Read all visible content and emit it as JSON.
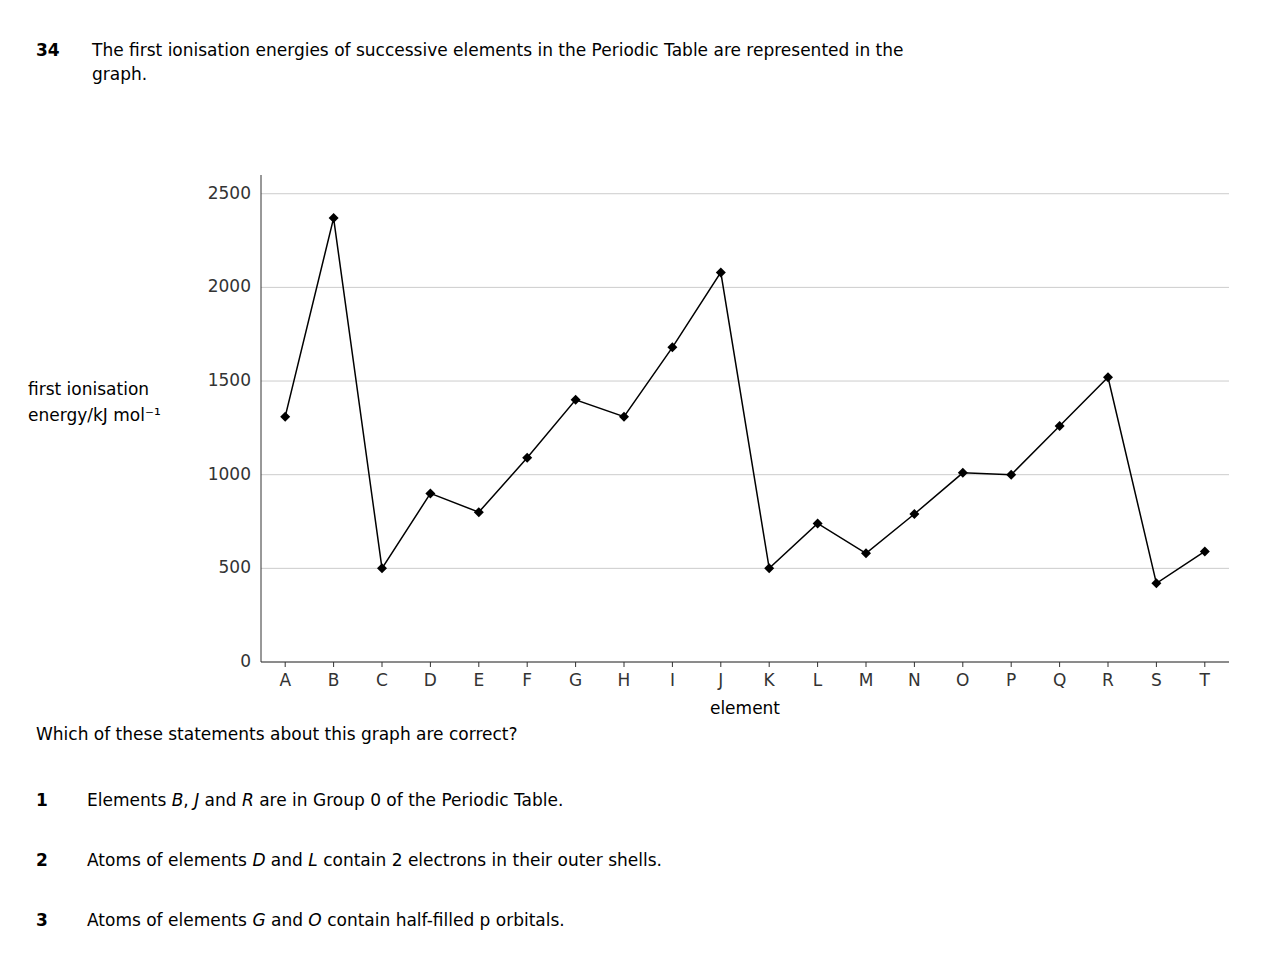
{
  "chart_data": {
    "type": "line",
    "title": "The first ionisation energies of successive elements in the Periodic Table are represented in the\ngraph.",
    "xlabel": "element",
    "ylabel": "first ionisation\nenergy/kJ mol⁻¹",
    "categories": [
      "A",
      "B",
      "C",
      "D",
      "E",
      "F",
      "G",
      "H",
      "I",
      "J",
      "K",
      "L",
      "M",
      "N",
      "O",
      "P",
      "Q",
      "R",
      "S",
      "T"
    ],
    "values": [
      1310,
      2370,
      500,
      900,
      800,
      1090,
      1400,
      1310,
      1680,
      2080,
      500,
      740,
      580,
      790,
      1010,
      1000,
      1260,
      1520,
      420,
      590
    ],
    "color": "#000000",
    "marker": "diamond",
    "ylim": [
      0,
      2600
    ],
    "yticks": [
      0,
      500,
      1000,
      1500,
      2000,
      2500
    ],
    "grid": true,
    "annotations": [
      {
        "text": "34"
      },
      {
        "text": "Which of these statements about this graph are correct?"
      },
      {
        "label": "1",
        "parts": [
          {
            "text": "Elements ",
            "italic": false
          },
          {
            "text": "B",
            "italic": true
          },
          {
            "text": ", ",
            "italic": false
          },
          {
            "text": "J",
            "italic": true
          },
          {
            "text": " and ",
            "italic": false
          },
          {
            "text": "R",
            "italic": true
          },
          {
            "text": " are in Group 0 of the Periodic Table.",
            "italic": false
          }
        ]
      },
      {
        "label": "2",
        "parts": [
          {
            "text": "Atoms of elements ",
            "italic": false
          },
          {
            "text": "D",
            "italic": true
          },
          {
            "text": " and ",
            "italic": false
          },
          {
            "text": "L",
            "italic": true
          },
          {
            "text": " contain 2 electrons in their outer shells.",
            "italic": false
          }
        ]
      },
      {
        "label": "3",
        "parts": [
          {
            "text": "Atoms of elements ",
            "italic": false
          },
          {
            "text": "G",
            "italic": true
          },
          {
            "text": " and ",
            "italic": false
          },
          {
            "text": "O",
            "italic": true
          },
          {
            "text": " contain half-filled p orbitals.",
            "italic": false
          }
        ]
      }
    ]
  }
}
